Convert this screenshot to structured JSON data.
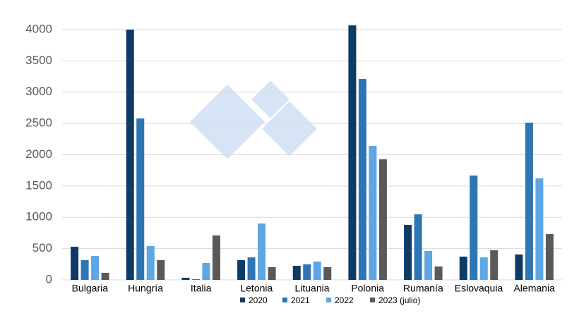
{
  "chart_data": {
    "type": "bar",
    "categories": [
      "Bulgaria",
      "Hungría",
      "Italia",
      "Letonia",
      "Lituania",
      "Polonia",
      "Rumanía",
      "Eslovaquia",
      "Alemania"
    ],
    "series": [
      {
        "name": "2020",
        "color": "#0e3a66",
        "values": [
          530,
          4000,
          34,
          315,
          225,
          4068,
          879,
          372,
          406
        ]
      },
      {
        "name": "2021",
        "color": "#2e75b6",
        "values": [
          315,
          2580,
          11,
          360,
          248,
          3211,
          1048,
          1668,
          2513
        ]
      },
      {
        "name": "2022",
        "color": "#5ea6e4",
        "values": [
          383,
          541,
          270,
          901,
          293,
          2141,
          462,
          360,
          1622
        ]
      },
      {
        "name": "2023 (julio)",
        "color": "#595959",
        "values": [
          113,
          315,
          710,
          203,
          203,
          1927,
          214,
          473,
          732
        ]
      }
    ],
    "ylim": [
      0,
      4000
    ],
    "yticks": [
      0,
      500,
      1000,
      1500,
      2000,
      2500,
      3000,
      3500,
      4000
    ],
    "grid": true,
    "legend": "bottom"
  }
}
